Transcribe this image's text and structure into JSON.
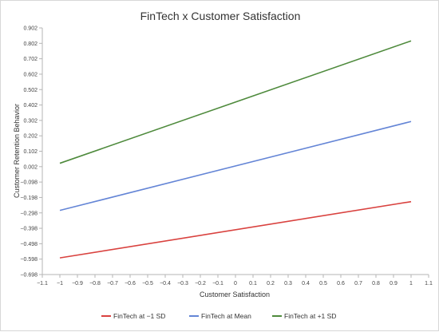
{
  "chart_data": {
    "type": "line",
    "title": "FinTech x Customer Satisfaction",
    "xlabel": "Customer Satisfaction",
    "ylabel": "Customer Retention Behavior",
    "xlim": [
      -1.1,
      1.1
    ],
    "ylim": [
      -0.698,
      0.902
    ],
    "xticks": [
      "−1.1",
      "−1",
      "−0.9",
      "−0.8",
      "−0.7",
      "−0.6",
      "−0.5",
      "−0.4",
      "−0.3",
      "−0.2",
      "−0.1",
      "0",
      "0.1",
      "0.2",
      "0.3",
      "0.4",
      "0.5",
      "0.6",
      "0.7",
      "0.8",
      "0.9",
      "1",
      "1.1"
    ],
    "xtick_values": [
      -1.1,
      -1,
      -0.9,
      -0.8,
      -0.7,
      -0.6,
      -0.5,
      -0.4,
      -0.3,
      -0.2,
      -0.1,
      0,
      0.1,
      0.2,
      0.3,
      0.4,
      0.5,
      0.6,
      0.7,
      0.8,
      0.9,
      1,
      1.1
    ],
    "yticks": [
      "−0.698",
      "−0.598",
      "−0.498",
      "−0.398",
      "−0.298",
      "−0.198",
      "−0.098",
      "0.002",
      "0.102",
      "0.202",
      "0.302",
      "0.402",
      "0.502",
      "0.602",
      "0.702",
      "0.802",
      "0.902"
    ],
    "ytick_values": [
      -0.698,
      -0.598,
      -0.498,
      -0.398,
      -0.298,
      -0.198,
      -0.098,
      0.002,
      0.102,
      0.202,
      0.302,
      0.402,
      0.502,
      0.602,
      0.702,
      0.802,
      0.902
    ],
    "grid": false,
    "legend_position": "bottom-center",
    "series": [
      {
        "name": "FinTech at −1 SD",
        "color": "#d9423f",
        "x": [
          -1,
          1
        ],
        "y": [
          -0.59,
          -0.225
        ]
      },
      {
        "name": "FinTech at Mean",
        "color": "#6485d6",
        "x": [
          -1,
          1
        ],
        "y": [
          -0.282,
          0.295
        ]
      },
      {
        "name": "FinTech at +1 SD",
        "color": "#4e8a3c",
        "x": [
          -1,
          1
        ],
        "y": [
          0.024,
          0.818
        ]
      }
    ]
  }
}
